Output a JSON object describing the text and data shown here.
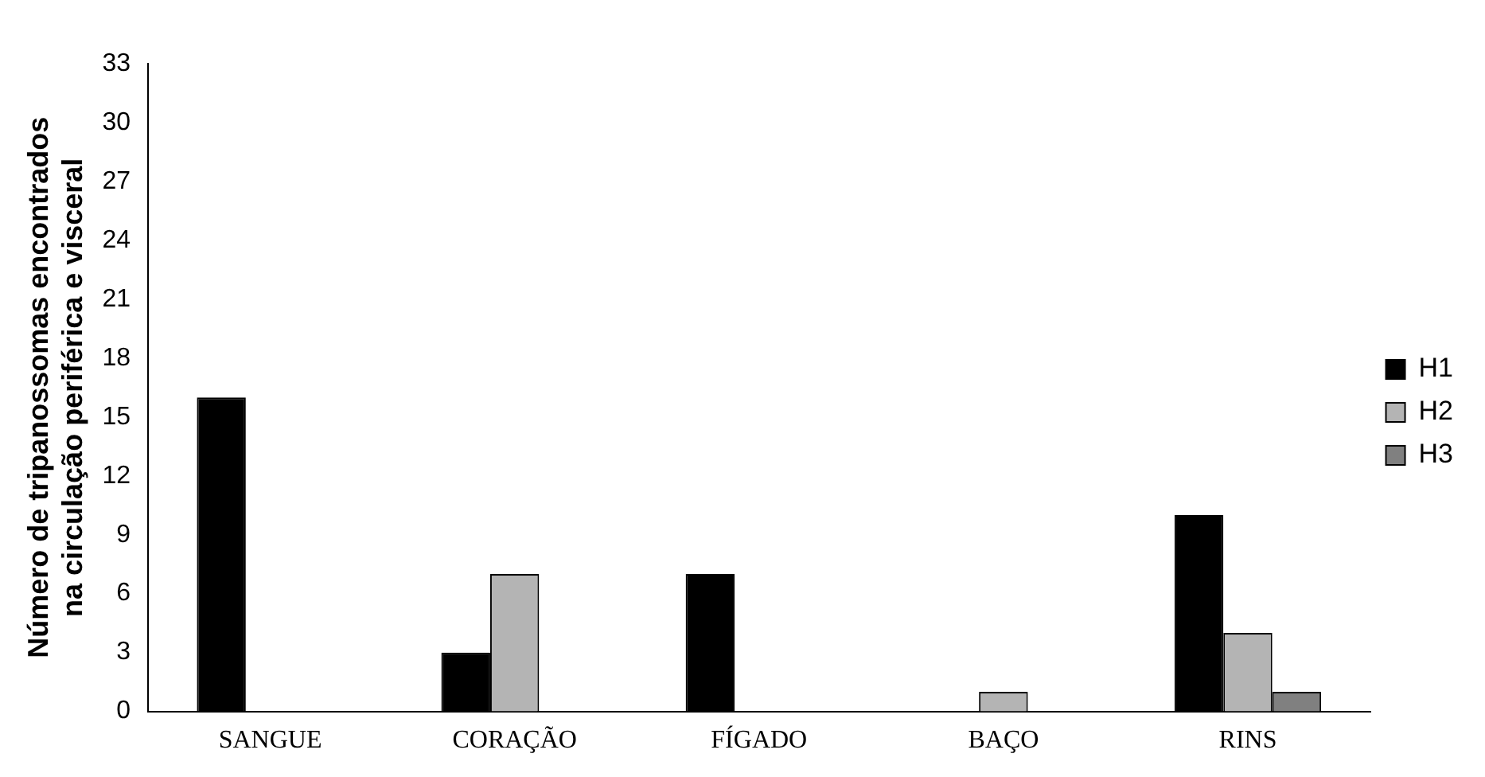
{
  "chart_data": {
    "type": "bar",
    "ylabel": "Número de tripanossomas encontrados\nna circulação periférica e visceral",
    "categories": [
      "SANGUE",
      "CORAÇÃO",
      "FÍGADO",
      "BAÇO",
      "RINS"
    ],
    "series": [
      {
        "name": "H1",
        "color": "#000000",
        "values": [
          16,
          3,
          7,
          0,
          10
        ]
      },
      {
        "name": "H2",
        "color": "#b4b4b4",
        "values": [
          0,
          7,
          0,
          1,
          4
        ]
      },
      {
        "name": "H3",
        "color": "#808080",
        "values": [
          0,
          0,
          0,
          0,
          1
        ]
      }
    ],
    "ylim": [
      0,
      33
    ],
    "yticks": [
      0,
      3,
      6,
      9,
      12,
      15,
      18,
      21,
      24,
      27,
      30,
      33
    ],
    "grid": false,
    "legend": "right"
  }
}
